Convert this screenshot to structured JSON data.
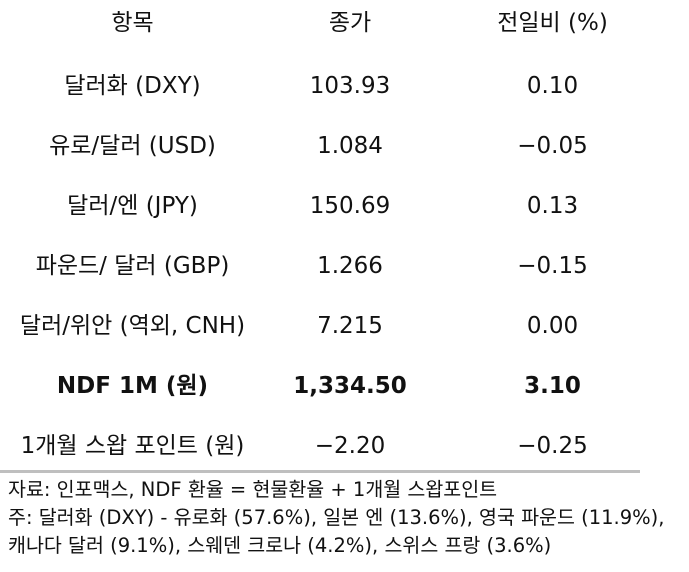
{
  "table": {
    "headers": [
      "항목",
      "종가",
      "전일비 (%)"
    ],
    "rows": [
      {
        "item": "달러화 (DXY)",
        "close": "103.93",
        "change": "0.10"
      },
      {
        "item": "유로/달러 (USD)",
        "close": "1.084",
        "change": "−0.05"
      },
      {
        "item": "달러/엔 (JPY)",
        "close": "150.69",
        "change": "0.13"
      },
      {
        "item": "파운드/ 달러 (GBP)",
        "close": "1.266",
        "change": "−0.15"
      },
      {
        "item": "달러/위안 (역외, CNH)",
        "close": "7.215",
        "change": "0.00"
      },
      {
        "item": "NDF 1M (원)",
        "close": "1,334.50",
        "change": "3.10"
      },
      {
        "item": "1개월 스왑 포인트 (원)",
        "close": "−2.20",
        "change": "−0.25"
      }
    ]
  },
  "notes": {
    "source": "자료: 인포맥스, NDF 환율 = 현물환율 + 1개월 스왑포인트",
    "note_line1": "주: 달러화 (DXY) - 유로화 (57.6%), 일본 엔 (13.6%), 영국 파운드 (11.9%),",
    "note_line2": "캐나다 달러 (9.1%), 스웨덴 크로나 (4.2%), 스위스 프랑 (3.6%)"
  }
}
